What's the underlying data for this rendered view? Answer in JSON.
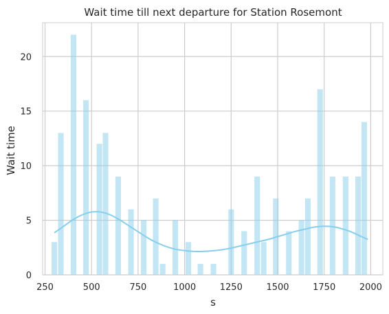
{
  "chart_data": {
    "type": "bar",
    "title": "Wait time till next departure for Station Rosemont",
    "xlabel": "s",
    "ylabel": "Wait time",
    "xlim": [
      237,
      2065
    ],
    "ylim": [
      0,
      23.1
    ],
    "x_ticks": [
      250,
      500,
      750,
      1000,
      1250,
      1500,
      1750,
      2000
    ],
    "y_ticks": [
      0,
      5,
      10,
      15,
      20
    ],
    "grid": true,
    "colors": {
      "bar": "#87ceeb",
      "kde": "#87ceeb",
      "grid": "#cccccc",
      "spine": "#cccccc"
    },
    "bars": [
      {
        "x": 300,
        "value": 3
      },
      {
        "x": 335,
        "value": 13
      },
      {
        "x": 403,
        "value": 22
      },
      {
        "x": 470,
        "value": 16
      },
      {
        "x": 542,
        "value": 12
      },
      {
        "x": 575,
        "value": 13
      },
      {
        "x": 643,
        "value": 9
      },
      {
        "x": 712,
        "value": 6
      },
      {
        "x": 780,
        "value": 5
      },
      {
        "x": 845,
        "value": 7
      },
      {
        "x": 882,
        "value": 1
      },
      {
        "x": 950,
        "value": 5
      },
      {
        "x": 1020,
        "value": 3
      },
      {
        "x": 1085,
        "value": 1
      },
      {
        "x": 1155,
        "value": 1
      },
      {
        "x": 1250,
        "value": 6
      },
      {
        "x": 1320,
        "value": 4
      },
      {
        "x": 1390,
        "value": 9
      },
      {
        "x": 1425,
        "value": 3
      },
      {
        "x": 1490,
        "value": 7
      },
      {
        "x": 1560,
        "value": 4
      },
      {
        "x": 1628,
        "value": 5
      },
      {
        "x": 1662,
        "value": 7
      },
      {
        "x": 1728,
        "value": 17
      },
      {
        "x": 1795,
        "value": 9
      },
      {
        "x": 1865,
        "value": 9
      },
      {
        "x": 1932,
        "value": 9
      },
      {
        "x": 1965,
        "value": 14
      }
    ],
    "bar_width": 30,
    "kde": {
      "x": [
        300,
        350,
        400,
        450,
        500,
        550,
        600,
        650,
        700,
        750,
        800,
        850,
        900,
        950,
        1000,
        1050,
        1100,
        1150,
        1200,
        1250,
        1300,
        1350,
        1400,
        1450,
        1500,
        1550,
        1600,
        1650,
        1700,
        1750,
        1800,
        1850,
        1900,
        1950,
        1985
      ],
      "y": [
        3.85,
        4.45,
        5.05,
        5.5,
        5.75,
        5.75,
        5.5,
        5.05,
        4.5,
        3.95,
        3.4,
        2.95,
        2.6,
        2.35,
        2.22,
        2.15,
        2.15,
        2.2,
        2.3,
        2.45,
        2.65,
        2.85,
        3.05,
        3.25,
        3.5,
        3.75,
        4.0,
        4.2,
        4.38,
        4.45,
        4.4,
        4.2,
        3.9,
        3.5,
        3.25
      ]
    }
  }
}
